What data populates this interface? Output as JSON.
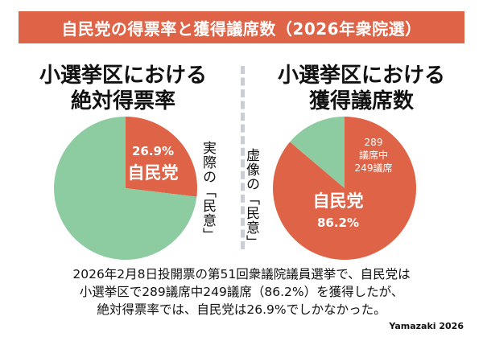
{
  "title": "自民党の得票率と獲得議席数（2026年衆院選）",
  "left_panel": {
    "title_lines": [
      "小選挙区における",
      "絶対得票率"
    ],
    "side_note": "実際の「民意」"
  },
  "right_panel": {
    "title_lines": [
      "小選挙区における",
      "獲得議席数"
    ],
    "side_note": "虚像の「民意」"
  },
  "description_lines": [
    "2026年2月8日投開票の第51回衆議院議員選挙で、自民党は",
    "小選挙区で289議席中249議席（86.2%）を獲得したが、",
    "絶対得票率では、自民党は26.9%でしかなかった。"
  ],
  "credit": "Yamazaki 2026",
  "colors": {
    "accent": "#df6447",
    "other": "#8dcba0",
    "divider": "#c9ced4"
  },
  "chart_data": [
    {
      "type": "pie",
      "slices": [
        {
          "label": "自民党",
          "value": 26.9,
          "value_label": "26.9%",
          "color": "#df6447"
        },
        {
          "label": "",
          "value": 73.1,
          "color": "#8dcba0"
        }
      ]
    },
    {
      "type": "pie",
      "slices": [
        {
          "label": "自民党",
          "value": 86.2,
          "value_label": "86.2%",
          "color": "#df6447",
          "detail_lines": [
            "289",
            "議席中",
            "249議席"
          ]
        },
        {
          "label": "",
          "value": 13.8,
          "color": "#8dcba0"
        }
      ]
    }
  ]
}
